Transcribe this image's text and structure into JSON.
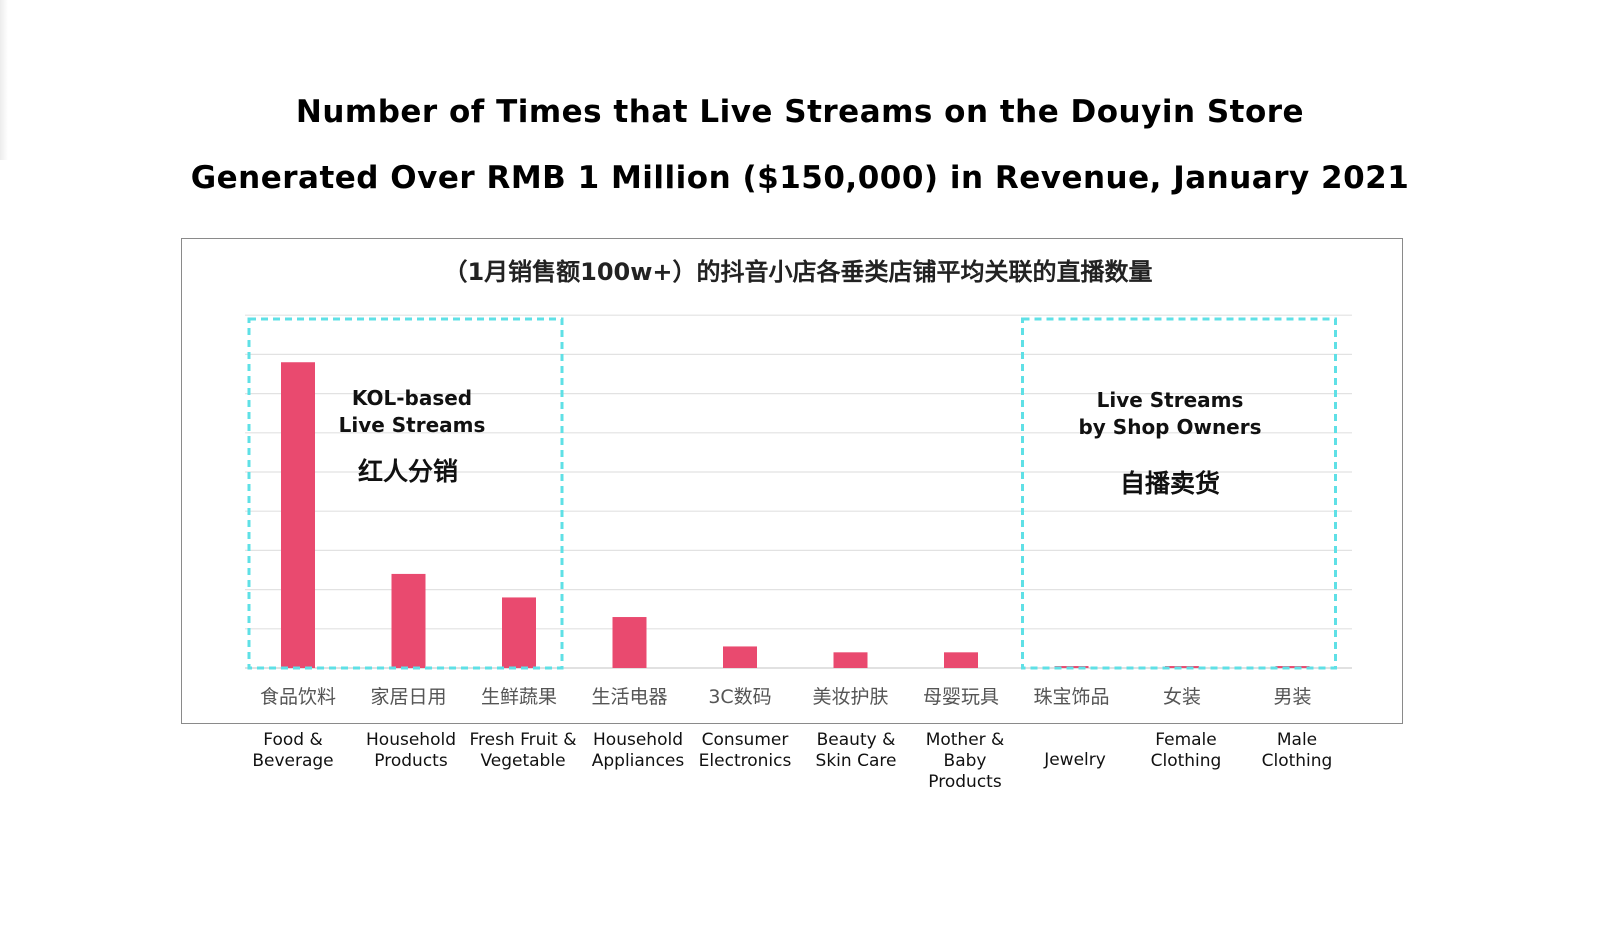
{
  "title_lines": [
    "Number of Times that Live Streams on the Douyin Store",
    "Generated Over RMB 1 Million ($150,000) in Revenue, January 2021"
  ],
  "chart_data": {
    "type": "bar",
    "subtitle": "（1月销售额100w+）的抖音小店各垂类店铺平均关联的直播数量",
    "categories": [
      "食品饮料",
      "家居日用",
      "生鲜蔬果",
      "生活电器",
      "3C数码",
      "美妆护肤",
      "母婴玩具",
      "珠宝饰品",
      "女装",
      "男装"
    ],
    "categories_en": [
      "Food &\nBeverage",
      "Household\nProducts",
      "Fresh Fruit &\nVegetable",
      "Household\nAppliances",
      "Consumer\nElectronics",
      "Beauty &\nSkin Care",
      "Mother & Baby\nProducts",
      "Jewelry",
      "Female\nClothing",
      "Male\nClothing"
    ],
    "values": [
      7.8,
      2.4,
      1.8,
      1.3,
      0.55,
      0.4,
      0.4,
      0.05,
      0.05,
      0.05
    ],
    "ylim": [
      0,
      9
    ],
    "yticks": [
      0,
      1,
      2,
      3,
      4,
      5,
      6,
      7,
      8,
      9
    ],
    "grid": true,
    "bar_color": "#e94a6f",
    "annotations": [
      {
        "title_lines": [
          "KOL-based",
          "Live Streams"
        ],
        "cn": "红人分销",
        "categories": [
          0,
          2
        ]
      },
      {
        "title_lines": [
          "Live Streams",
          "by Shop Owners"
        ],
        "cn": "自播卖货",
        "categories": [
          7,
          9
        ]
      }
    ]
  },
  "colors": {
    "bar": "#e94a6f",
    "box_border": "#5fe0e6",
    "grid": "#e2e2e2",
    "frame": "#8a8a8a"
  }
}
